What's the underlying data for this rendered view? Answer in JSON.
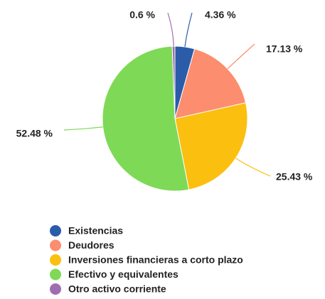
{
  "chart_data": {
    "type": "pie",
    "categories": [
      "Existencias",
      "Deudores",
      "Inversiones financieras a corto plazo",
      "Efectivo y equivalentes",
      "Otro activo corriente"
    ],
    "values": [
      4.36,
      17.13,
      25.43,
      52.48,
      0.6
    ],
    "value_labels": [
      "4.36 %",
      "17.13 %",
      "25.43 %",
      "52.48 %",
      "0.6 %"
    ],
    "colors": [
      "#2a5caa",
      "#fc8d6e",
      "#fbbf0f",
      "#7ed957",
      "#a06eb0"
    ],
    "legend": "bottom"
  }
}
